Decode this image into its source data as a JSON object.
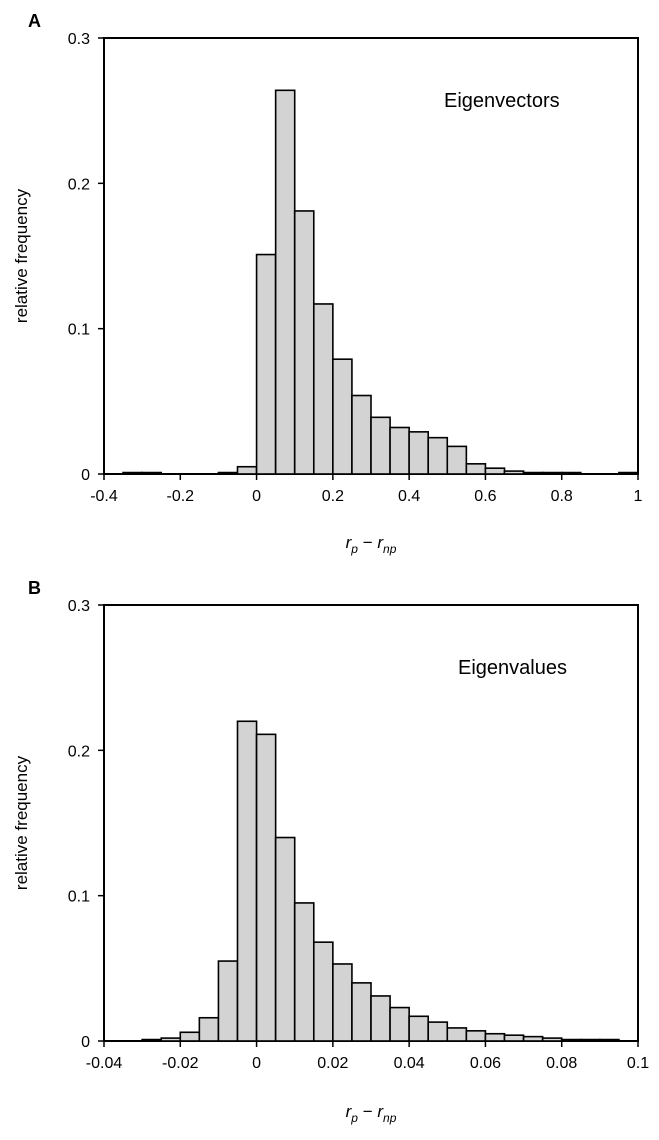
{
  "chart_data": [
    {
      "type": "bar",
      "panel": "A",
      "annotation": "Eigenvectors",
      "xlabel": "r_p − r_np",
      "ylabel": "relative frequency",
      "xlim": [
        -0.4,
        1.0
      ],
      "ylim": [
        0,
        0.3
      ],
      "x_ticks": [
        "-0.4",
        "-0.2",
        "0",
        "0.2",
        "0.4",
        "0.6",
        "0.8",
        "1"
      ],
      "y_ticks": [
        "0",
        "0.1",
        "0.2",
        "0.3"
      ],
      "bin_width": 0.05,
      "bin_starts": [
        -0.4,
        -0.35,
        -0.3,
        -0.25,
        -0.2,
        -0.15,
        -0.1,
        -0.05,
        0.0,
        0.05,
        0.1,
        0.15,
        0.2,
        0.25,
        0.3,
        0.35,
        0.4,
        0.45,
        0.5,
        0.55,
        0.6,
        0.65,
        0.7,
        0.75,
        0.8,
        0.85,
        0.9,
        0.95
      ],
      "values": [
        0.0,
        0.001,
        0.001,
        0.0,
        0.0,
        0.0,
        0.001,
        0.005,
        0.151,
        0.264,
        0.181,
        0.117,
        0.079,
        0.054,
        0.039,
        0.032,
        0.029,
        0.025,
        0.019,
        0.007,
        0.004,
        0.002,
        0.001,
        0.001,
        0.001,
        0.0,
        0.0,
        0.001
      ],
      "grid": false
    },
    {
      "type": "bar",
      "panel": "B",
      "annotation": "Eigenvalues",
      "xlabel": "r_p − r_np",
      "ylabel": "relative frequency",
      "xlim": [
        -0.04,
        0.1
      ],
      "ylim": [
        0,
        0.3
      ],
      "x_ticks": [
        "-0.04",
        "-0.02",
        "0",
        "0.02",
        "0.04",
        "0.06",
        "0.08",
        "0.1"
      ],
      "y_ticks": [
        "0",
        "0.1",
        "0.2",
        "0.3"
      ],
      "bin_width": 0.005,
      "bin_starts": [
        -0.04,
        -0.035,
        -0.03,
        -0.025,
        -0.02,
        -0.015,
        -0.01,
        -0.005,
        0.0,
        0.005,
        0.01,
        0.015,
        0.02,
        0.025,
        0.03,
        0.035,
        0.04,
        0.045,
        0.05,
        0.055,
        0.06,
        0.065,
        0.07,
        0.075,
        0.08,
        0.085,
        0.09,
        0.095
      ],
      "values": [
        0.0,
        0.0,
        0.001,
        0.002,
        0.006,
        0.016,
        0.055,
        0.22,
        0.211,
        0.14,
        0.095,
        0.068,
        0.053,
        0.04,
        0.031,
        0.023,
        0.017,
        0.013,
        0.009,
        0.007,
        0.005,
        0.004,
        0.003,
        0.002,
        0.001,
        0.001,
        0.001,
        0.0
      ],
      "grid": false
    }
  ]
}
